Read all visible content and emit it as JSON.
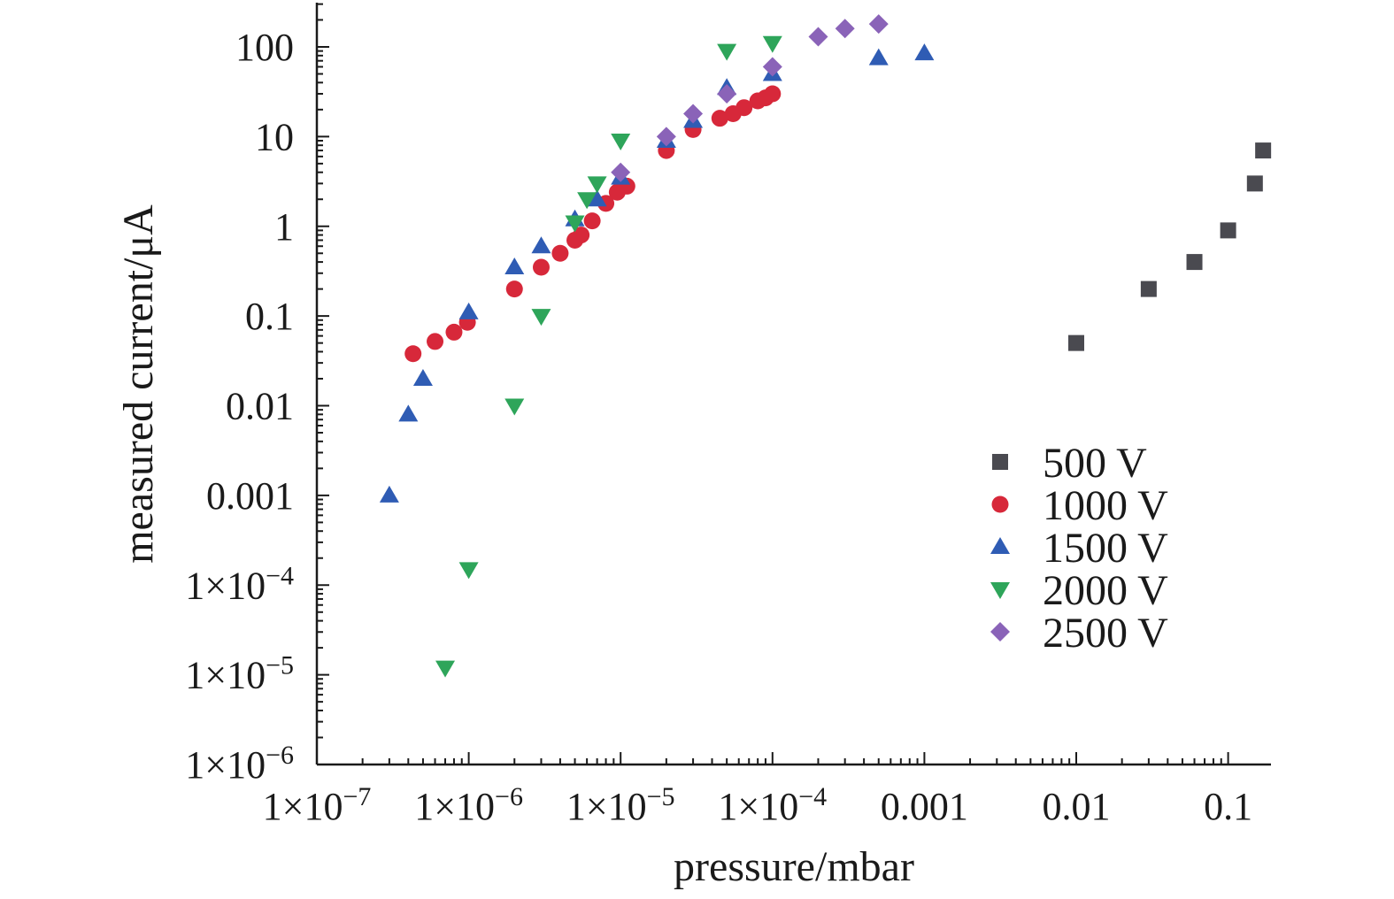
{
  "chart_data": {
    "type": "scatter",
    "title": "",
    "xlabel": "pressure/mbar",
    "ylabel": "measured current/μA",
    "xscale": "log",
    "yscale": "log",
    "xlim": [
      1e-07,
      0.18
    ],
    "ylim": [
      1e-06,
      300
    ],
    "grid": false,
    "legend_position": "right",
    "x_tick_labels": [
      {
        "value": 1e-07,
        "base": "1×10",
        "exp": "−7"
      },
      {
        "value": 1e-06,
        "base": "1×10",
        "exp": "−6"
      },
      {
        "value": 1e-05,
        "base": "1×10",
        "exp": "−5"
      },
      {
        "value": 0.0001,
        "base": "1×10",
        "exp": "−4"
      },
      {
        "value": 0.001,
        "base": "0.001",
        "exp": ""
      },
      {
        "value": 0.01,
        "base": "0.01",
        "exp": ""
      },
      {
        "value": 0.1,
        "base": "0.1",
        "exp": ""
      }
    ],
    "y_tick_labels": [
      {
        "value": 1e-06,
        "base": "1×10",
        "exp": "−6"
      },
      {
        "value": 1e-05,
        "base": "1×10",
        "exp": "−5"
      },
      {
        "value": 0.0001,
        "base": "1×10",
        "exp": "−4"
      },
      {
        "value": 0.001,
        "base": "0.001",
        "exp": ""
      },
      {
        "value": 0.01,
        "base": "0.01",
        "exp": ""
      },
      {
        "value": 0.1,
        "base": "0.1",
        "exp": ""
      },
      {
        "value": 1,
        "base": "1",
        "exp": ""
      },
      {
        "value": 10,
        "base": "10",
        "exp": ""
      },
      {
        "value": 100,
        "base": "100",
        "exp": ""
      }
    ],
    "series": [
      {
        "name": "500 V",
        "marker": "square",
        "color": "#4a4a50",
        "points": [
          [
            0.01,
            0.05
          ],
          [
            0.03,
            0.2
          ],
          [
            0.06,
            0.4
          ],
          [
            0.1,
            0.9
          ],
          [
            0.15,
            3.0
          ],
          [
            0.17,
            7.0
          ]
        ]
      },
      {
        "name": "1000 V",
        "marker": "circle",
        "color": "#d7283a",
        "points": [
          [
            4.3e-07,
            0.038
          ],
          [
            6e-07,
            0.052
          ],
          [
            8e-07,
            0.066
          ],
          [
            9.8e-07,
            0.085
          ],
          [
            2e-06,
            0.2
          ],
          [
            3e-06,
            0.35
          ],
          [
            4e-06,
            0.5
          ],
          [
            5e-06,
            0.7
          ],
          [
            5.5e-06,
            0.8
          ],
          [
            6.5e-06,
            1.15
          ],
          [
            8e-06,
            1.8
          ],
          [
            9.5e-06,
            2.4
          ],
          [
            1.1e-05,
            2.8
          ],
          [
            2e-05,
            7.0
          ],
          [
            3e-05,
            12.0
          ],
          [
            4.5e-05,
            16.0
          ],
          [
            5.5e-05,
            18.0
          ],
          [
            6.5e-05,
            21.0
          ],
          [
            8e-05,
            25.0
          ],
          [
            9e-05,
            27.0
          ],
          [
            0.0001,
            30.0
          ]
        ]
      },
      {
        "name": "1500 V",
        "marker": "triangle-up",
        "color": "#2f5cb4",
        "points": [
          [
            3e-07,
            0.001
          ],
          [
            4e-07,
            0.008
          ],
          [
            5e-07,
            0.02
          ],
          [
            1e-06,
            0.11
          ],
          [
            2e-06,
            0.35
          ],
          [
            3e-06,
            0.6
          ],
          [
            5e-06,
            1.2
          ],
          [
            7e-06,
            2.0
          ],
          [
            1e-05,
            3.5
          ],
          [
            2e-05,
            9.0
          ],
          [
            3e-05,
            15.0
          ],
          [
            5e-05,
            35.0
          ],
          [
            0.0001,
            50.0
          ],
          [
            0.0005,
            75.0
          ],
          [
            0.001,
            85.0
          ]
        ]
      },
      {
        "name": "2000 V",
        "marker": "triangle-down",
        "color": "#2ea55a",
        "points": [
          [
            7e-07,
            1.2e-05
          ],
          [
            1e-06,
            0.00015
          ],
          [
            2e-06,
            0.01
          ],
          [
            3e-06,
            0.1
          ],
          [
            5e-06,
            1.1
          ],
          [
            6e-06,
            2.0
          ],
          [
            7e-06,
            3.0
          ],
          [
            1e-05,
            9.0
          ],
          [
            5e-05,
            90.0
          ],
          [
            0.0001,
            110.0
          ]
        ]
      },
      {
        "name": "2500 V",
        "marker": "diamond",
        "color": "#8a63b8",
        "points": [
          [
            1e-05,
            4.0
          ],
          [
            2e-05,
            10.0
          ],
          [
            3e-05,
            18.0
          ],
          [
            5e-05,
            30.0
          ],
          [
            0.0001,
            60.0
          ],
          [
            0.0002,
            130.0
          ],
          [
            0.0003,
            160.0
          ],
          [
            0.0005,
            180.0
          ]
        ]
      }
    ]
  }
}
